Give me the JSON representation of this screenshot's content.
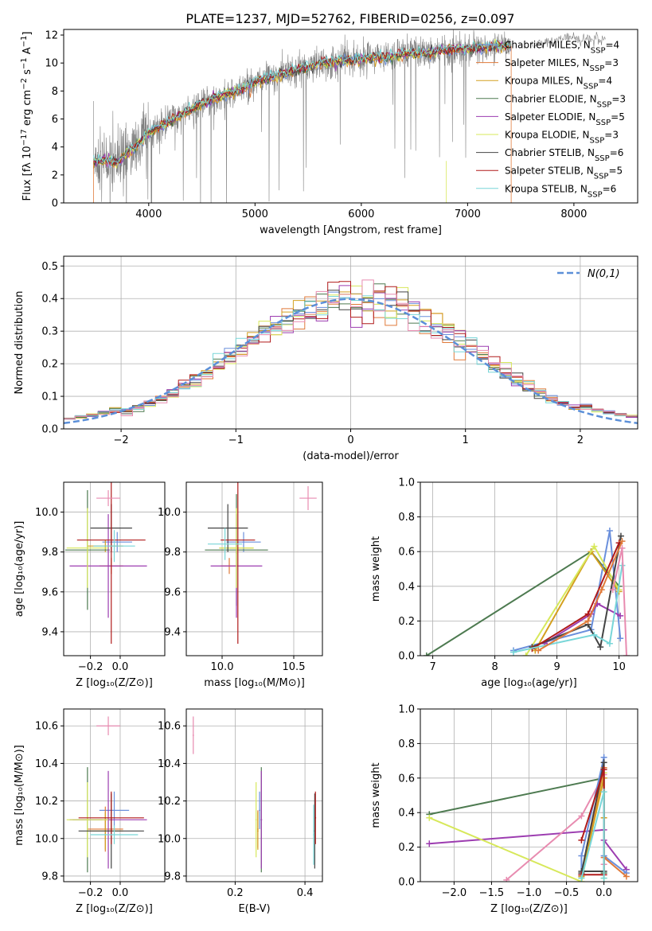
{
  "figure": {
    "title": "PLATE=1237, MJD=52762, FIBERID=0256, z=0.097"
  },
  "chart_data": [
    {
      "id": "spectrum",
      "type": "line",
      "xlabel": "wavelength [Angstrom, rest frame]",
      "ylabel": "Flux [f_λ 10^-17 erg cm^-2 s^-1 A^-1]",
      "xlim": [
        3200,
        8600
      ],
      "ylim": [
        0,
        12.4
      ],
      "xticks": [
        4000,
        5000,
        6000,
        7000,
        8000
      ],
      "yticks": [
        0,
        2,
        4,
        6,
        8,
        10,
        12
      ],
      "grid": false,
      "legend_position": "upper-right",
      "data_x": [
        3480,
        3600,
        3700,
        3800,
        3900,
        4000,
        4100,
        4200,
        4300,
        4400,
        4500,
        4600,
        4700,
        4800,
        4900,
        5000,
        5100,
        5200,
        5300,
        5400,
        5500,
        5600,
        5700,
        5800,
        5900,
        6000,
        6100,
        6200,
        6300,
        6400,
        6500,
        6600,
        6700,
        6800,
        6900,
        7000,
        7100,
        7200,
        7300,
        7410
      ],
      "data_y": [
        3.0,
        3.0,
        2.9,
        3.6,
        4.2,
        5.0,
        5.4,
        5.9,
        6.3,
        6.7,
        7.1,
        7.4,
        7.7,
        7.9,
        8.2,
        8.6,
        8.9,
        9.1,
        9.3,
        9.5,
        9.7,
        9.9,
        10.0,
        10.1,
        10.2,
        10.3,
        10.4,
        10.4,
        10.5,
        10.6,
        10.7,
        10.7,
        10.8,
        10.9,
        11.0,
        11.0,
        11.1,
        11.1,
        11.2,
        11.2
      ],
      "tail_x": [
        7600,
        7800,
        8000,
        8100,
        8200,
        8300
      ],
      "tail_y": [
        11.3,
        11.6,
        11.9,
        11.6,
        11.8,
        11.7
      ],
      "series": [
        {
          "name": "Chabrier MILES, N_SSP=4",
          "color": "#6a8fdc"
        },
        {
          "name": "Salpeter MILES, N_SSP=3",
          "color": "#e07a3a"
        },
        {
          "name": "Kroupa MILES, N_SSP=4",
          "color": "#d4a020"
        },
        {
          "name": "Chabrier ELODIE, N_SSP=3",
          "color": "#4d7a50"
        },
        {
          "name": "Salpeter ELODIE, N_SSP=5",
          "color": "#9c3cb0"
        },
        {
          "name": "Kroupa ELODIE, N_SSP=3",
          "color": "#d7e85a"
        },
        {
          "name": "Chabrier STELIB, N_SSP=6",
          "color": "#444444"
        },
        {
          "name": "Salpeter STELIB, N_SSP=5",
          "color": "#b01a1a"
        },
        {
          "name": "Kroupa STELIB, N_SSP=6",
          "color": "#78d6d8"
        }
      ],
      "data_color": "#808080"
    },
    {
      "id": "residuals",
      "type": "line",
      "xlabel": "(data-model)/error",
      "ylabel": "Normed distribution",
      "xlim": [
        -2.5,
        2.5
      ],
      "ylim": [
        0,
        0.53
      ],
      "xticks": [
        -2,
        -1,
        0,
        1,
        2
      ],
      "yticks": [
        0.0,
        0.1,
        0.2,
        0.3,
        0.4,
        0.5
      ],
      "grid": true,
      "legend_position": "upper-right",
      "gauss_label": "N(0,1)",
      "gauss_color": "#5b8fd8",
      "bin_width": 0.1
    },
    {
      "id": "age-vs-Z",
      "type": "scatter",
      "xlabel": "Z [log10(Z/Z_sun)]",
      "ylabel": "age [log10(age/yr)]",
      "xlim": [
        -0.38,
        0.3
      ],
      "ylim": [
        9.28,
        10.15
      ],
      "xticks": [
        -0.2,
        0.0
      ],
      "yticks": [
        9.4,
        9.6,
        9.8,
        10.0
      ],
      "grid": true,
      "points": [
        {
          "x": -0.02,
          "y": 9.85,
          "xerr": 0.1,
          "yerr": 0.05,
          "color": "#6a8fdc"
        },
        {
          "x": -0.06,
          "y": 9.73,
          "xerr": 0.08,
          "yerr": 0.04,
          "color": "#e07a3a"
        },
        {
          "x": -0.1,
          "y": 9.83,
          "xerr": 0.12,
          "yerr": 0.03,
          "color": "#d4a020"
        },
        {
          "x": -0.22,
          "y": 9.81,
          "xerr": 0.15,
          "yerr": 0.3,
          "color": "#4d7a50"
        },
        {
          "x": -0.08,
          "y": 9.73,
          "xerr": 0.26,
          "yerr": 0.26,
          "color": "#9c3cb0"
        },
        {
          "x": -0.22,
          "y": 9.82,
          "xerr": 0.14,
          "yerr": 0.2,
          "color": "#d7e85a"
        },
        {
          "x": -0.06,
          "y": 9.92,
          "xerr": 0.14,
          "yerr": 0.12,
          "color": "#444444"
        },
        {
          "x": -0.06,
          "y": 9.86,
          "xerr": 0.23,
          "yerr": 0.52,
          "color": "#b01a1a"
        },
        {
          "x": -0.04,
          "y": 9.83,
          "xerr": 0.14,
          "yerr": 0.08,
          "color": "#78d6d8"
        },
        {
          "x": -0.08,
          "y": 10.07,
          "xerr": 0.08,
          "yerr": 0.04,
          "color": "#e88bb0"
        }
      ]
    },
    {
      "id": "age-vs-mass",
      "type": "scatter",
      "xlabel": "mass [log10(M/M_sun)]",
      "ylabel": "",
      "xlim": [
        9.75,
        10.7
      ],
      "ylim": [
        9.28,
        10.15
      ],
      "xticks": [
        10.0,
        10.5
      ],
      "yticks": [
        9.4,
        9.6,
        9.8,
        10.0
      ],
      "grid": true,
      "points": [
        {
          "x": 10.15,
          "y": 9.85,
          "xerr": 0.12,
          "yerr": 0.05,
          "color": "#6a8fdc"
        },
        {
          "x": 10.05,
          "y": 9.73,
          "xerr": 0.06,
          "yerr": 0.04,
          "color": "#e07a3a"
        },
        {
          "x": 10.1,
          "y": 9.82,
          "xerr": 0.12,
          "yerr": 0.03,
          "color": "#d4a020"
        },
        {
          "x": 10.1,
          "y": 9.81,
          "xerr": 0.22,
          "yerr": 0.28,
          "color": "#4d7a50"
        },
        {
          "x": 10.1,
          "y": 9.73,
          "xerr": 0.18,
          "yerr": 0.26,
          "color": "#9c3cb0"
        },
        {
          "x": 10.1,
          "y": 9.82,
          "xerr": 0.12,
          "yerr": 0.2,
          "color": "#d7e85a"
        },
        {
          "x": 10.04,
          "y": 9.92,
          "xerr": 0.14,
          "yerr": 0.12,
          "color": "#444444"
        },
        {
          "x": 10.11,
          "y": 9.86,
          "xerr": 0.12,
          "yerr": 0.52,
          "color": "#b01a1a"
        },
        {
          "x": 10.02,
          "y": 9.84,
          "xerr": 0.12,
          "yerr": 0.08,
          "color": "#78d6d8"
        },
        {
          "x": 10.6,
          "y": 10.07,
          "xerr": 0.06,
          "yerr": 0.06,
          "color": "#e88bb0"
        }
      ]
    },
    {
      "id": "weight-vs-age",
      "type": "line",
      "xlabel": "age [log10(age/yr)]",
      "ylabel": "mass weight",
      "xlim": [
        6.8,
        10.3
      ],
      "ylim": [
        0.0,
        1.0
      ],
      "xticks": [
        7,
        8,
        9,
        10
      ],
      "yticks": [
        0.0,
        0.2,
        0.4,
        0.6,
        0.8,
        1.0
      ],
      "grid": true,
      "series": [
        {
          "color": "#4d7a50",
          "x": [
            6.9,
            9.55,
            10.0
          ],
          "y": [
            0.0,
            0.6,
            0.4
          ]
        },
        {
          "color": "#6a8fdc",
          "x": [
            8.3,
            9.55,
            9.85,
            10.02
          ],
          "y": [
            0.03,
            0.15,
            0.72,
            0.1
          ]
        },
        {
          "color": "#d4a020",
          "x": [
            8.65,
            9.55,
            10.0
          ],
          "y": [
            0.03,
            0.6,
            0.37
          ]
        },
        {
          "color": "#9c3cb0",
          "x": [
            8.8,
            9.55,
            9.65,
            10.02
          ],
          "y": [
            0.07,
            0.24,
            0.3,
            0.23
          ]
        },
        {
          "color": "#d7e85a",
          "x": [
            8.5,
            9.6,
            10.0
          ],
          "y": [
            0.0,
            0.63,
            0.38
          ]
        },
        {
          "color": "#444444",
          "x": [
            8.6,
            9.5,
            9.7,
            10.03
          ],
          "y": [
            0.05,
            0.18,
            0.05,
            0.69
          ]
        },
        {
          "color": "#b01a1a",
          "x": [
            8.6,
            9.5,
            10.0
          ],
          "y": [
            0.04,
            0.24,
            0.65
          ]
        },
        {
          "color": "#78d6d8",
          "x": [
            8.3,
            9.6,
            9.85,
            10.05
          ],
          "y": [
            0.02,
            0.12,
            0.07,
            0.52
          ]
        },
        {
          "color": "#e88bb0",
          "x": [
            9.9,
            10.05,
            10.12
          ],
          "y": [
            0.38,
            0.62,
            0.0
          ]
        },
        {
          "color": "#e07a3a",
          "x": [
            8.7,
            9.5,
            9.72,
            10.05
          ],
          "y": [
            0.03,
            0.2,
            0.38,
            0.66
          ]
        }
      ]
    },
    {
      "id": "mass-vs-Z",
      "type": "scatter",
      "xlabel": "Z [log10(Z/Z_sun)]",
      "ylabel": "mass [log10(M/M_sun)]",
      "xlim": [
        -0.38,
        0.3
      ],
      "ylim": [
        9.77,
        10.69
      ],
      "xticks": [
        -0.2,
        0.0
      ],
      "yticks": [
        9.8,
        10.0,
        10.2,
        10.4,
        10.6
      ],
      "grid": true,
      "points": [
        {
          "x": -0.04,
          "y": 10.15,
          "xerr": 0.1,
          "yerr": 0.1,
          "color": "#6a8fdc"
        },
        {
          "x": -0.1,
          "y": 10.05,
          "xerr": 0.12,
          "yerr": 0.12,
          "color": "#e07a3a"
        },
        {
          "x": -0.1,
          "y": 10.04,
          "xerr": 0.12,
          "yerr": 0.1,
          "color": "#d4a020"
        },
        {
          "x": -0.22,
          "y": 10.1,
          "xerr": 0.1,
          "yerr": 0.28,
          "color": "#4d7a50"
        },
        {
          "x": -0.08,
          "y": 10.1,
          "xerr": 0.26,
          "yerr": 0.26,
          "color": "#9c3cb0"
        },
        {
          "x": -0.22,
          "y": 10.1,
          "xerr": 0.14,
          "yerr": 0.2,
          "color": "#d7e85a"
        },
        {
          "x": -0.06,
          "y": 10.04,
          "xerr": 0.22,
          "yerr": 0.2,
          "color": "#444444"
        },
        {
          "x": -0.06,
          "y": 10.11,
          "xerr": 0.22,
          "yerr": 0.14,
          "color": "#b01a1a"
        },
        {
          "x": -0.04,
          "y": 10.02,
          "xerr": 0.16,
          "yerr": 0.05,
          "color": "#78d6d8"
        },
        {
          "x": -0.08,
          "y": 10.6,
          "xerr": 0.08,
          "yerr": 0.05,
          "color": "#e88bb0"
        }
      ]
    },
    {
      "id": "mass-vs-EBV",
      "type": "scatter",
      "xlabel": "E(B-V)",
      "ylabel": "",
      "xlim": [
        0.06,
        0.45
      ],
      "ylim": [
        9.77,
        10.69
      ],
      "xticks": [
        0.2,
        0.4
      ],
      "yticks": [
        9.8,
        10.0,
        10.2,
        10.4,
        10.6
      ],
      "grid": true,
      "points": [
        {
          "x": 0.27,
          "y": 10.15,
          "xerr": 0.002,
          "yerr": 0.1,
          "color": "#6a8fdc"
        },
        {
          "x": 0.265,
          "y": 10.05,
          "xerr": 0.002,
          "yerr": 0.1,
          "color": "#e07a3a"
        },
        {
          "x": 0.265,
          "y": 10.04,
          "xerr": 0.002,
          "yerr": 0.1,
          "color": "#d4a020"
        },
        {
          "x": 0.275,
          "y": 10.1,
          "xerr": 0.002,
          "yerr": 0.28,
          "color": "#4d7a50"
        },
        {
          "x": 0.275,
          "y": 10.1,
          "xerr": 0.002,
          "yerr": 0.26,
          "color": "#9c3cb0"
        },
        {
          "x": 0.26,
          "y": 10.1,
          "xerr": 0.002,
          "yerr": 0.2,
          "color": "#d7e85a"
        },
        {
          "x": 0.428,
          "y": 10.04,
          "xerr": 0.002,
          "yerr": 0.2,
          "color": "#444444"
        },
        {
          "x": 0.43,
          "y": 10.11,
          "xerr": 0.002,
          "yerr": 0.14,
          "color": "#b01a1a"
        },
        {
          "x": 0.425,
          "y": 10.02,
          "xerr": 0.002,
          "yerr": 0.16,
          "color": "#78d6d8"
        },
        {
          "x": 0.08,
          "y": 10.55,
          "xerr": 0.002,
          "yerr": 0.1,
          "color": "#e88bb0"
        }
      ]
    },
    {
      "id": "weight-vs-Z",
      "type": "line",
      "xlabel": "Z [log10(Z/Z_sun)]",
      "ylabel": "mass weight",
      "xlim": [
        -2.45,
        0.45
      ],
      "ylim": [
        0.0,
        1.0
      ],
      "xticks": [
        -2.0,
        -1.5,
        -1.0,
        -0.5,
        0.0
      ],
      "yticks": [
        0.0,
        0.2,
        0.4,
        0.6,
        0.8,
        1.0
      ],
      "grid": true,
      "series": [
        {
          "color": "#4d7a50",
          "x": [
            -2.33,
            0.0,
            0.0
          ],
          "y": [
            0.39,
            0.6,
            0.05
          ]
        },
        {
          "color": "#9c3cb0",
          "x": [
            -2.33,
            0.0,
            0.0,
            0.3
          ],
          "y": [
            0.22,
            0.3,
            0.24,
            0.07
          ]
        },
        {
          "color": "#d7e85a",
          "x": [
            -2.33,
            -0.3,
            0.0,
            0.0
          ],
          "y": [
            0.37,
            0.0,
            0.63,
            0.02
          ]
        },
        {
          "color": "#e88bb0",
          "x": [
            -1.3,
            -0.3,
            0.0,
            0.0
          ],
          "y": [
            0.01,
            0.38,
            0.62,
            0.1
          ]
        },
        {
          "color": "#6a8fdc",
          "x": [
            -0.3,
            -0.3,
            0.0,
            0.0,
            0.3
          ],
          "y": [
            0.04,
            0.15,
            0.72,
            0.15,
            0.05
          ]
        },
        {
          "color": "#e07a3a",
          "x": [
            -0.3,
            0.0,
            0.0,
            0.3
          ],
          "y": [
            0.03,
            0.66,
            0.14,
            0.03
          ]
        },
        {
          "color": "#d4a020",
          "x": [
            -0.3,
            0.0,
            0.0
          ],
          "y": [
            0.03,
            0.6,
            0.37
          ]
        },
        {
          "color": "#444444",
          "x": [
            -0.3,
            0.0,
            0.0,
            -0.3
          ],
          "y": [
            0.05,
            0.69,
            0.06,
            0.06
          ]
        },
        {
          "color": "#b01a1a",
          "x": [
            -0.3,
            0.0,
            0.0,
            -0.3
          ],
          "y": [
            0.24,
            0.65,
            0.04,
            0.04
          ]
        },
        {
          "color": "#78d6d8",
          "x": [
            -0.3,
            0.0,
            0.0
          ],
          "y": [
            0.02,
            0.52,
            0.02
          ]
        }
      ]
    }
  ]
}
